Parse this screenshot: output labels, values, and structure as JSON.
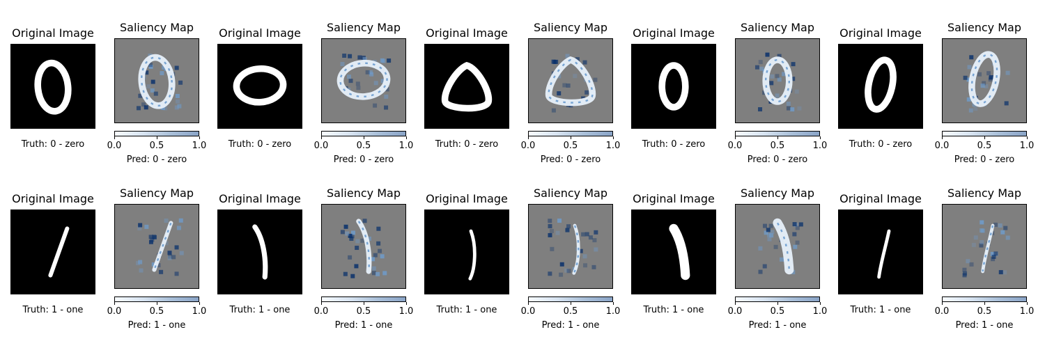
{
  "titles": {
    "original": "Original Image",
    "saliency": "Saliency Map"
  },
  "colorbar_ticks": [
    "0.0",
    "0.5",
    "1.0"
  ],
  "colors": {
    "orig_bg": "#000000",
    "saliency_bg": "#7f7f7f",
    "cmap_low": "#f7fbff",
    "cmap_high": "#08306b"
  },
  "rows": [
    {
      "truth": "Truth: 0 - zero",
      "pred": "Pred: 0 - zero",
      "digit": "0",
      "samples": 5
    },
    {
      "truth": "Truth: 1 - one",
      "pred": "Pred: 1 - one",
      "digit": "1",
      "samples": 5
    }
  ]
}
